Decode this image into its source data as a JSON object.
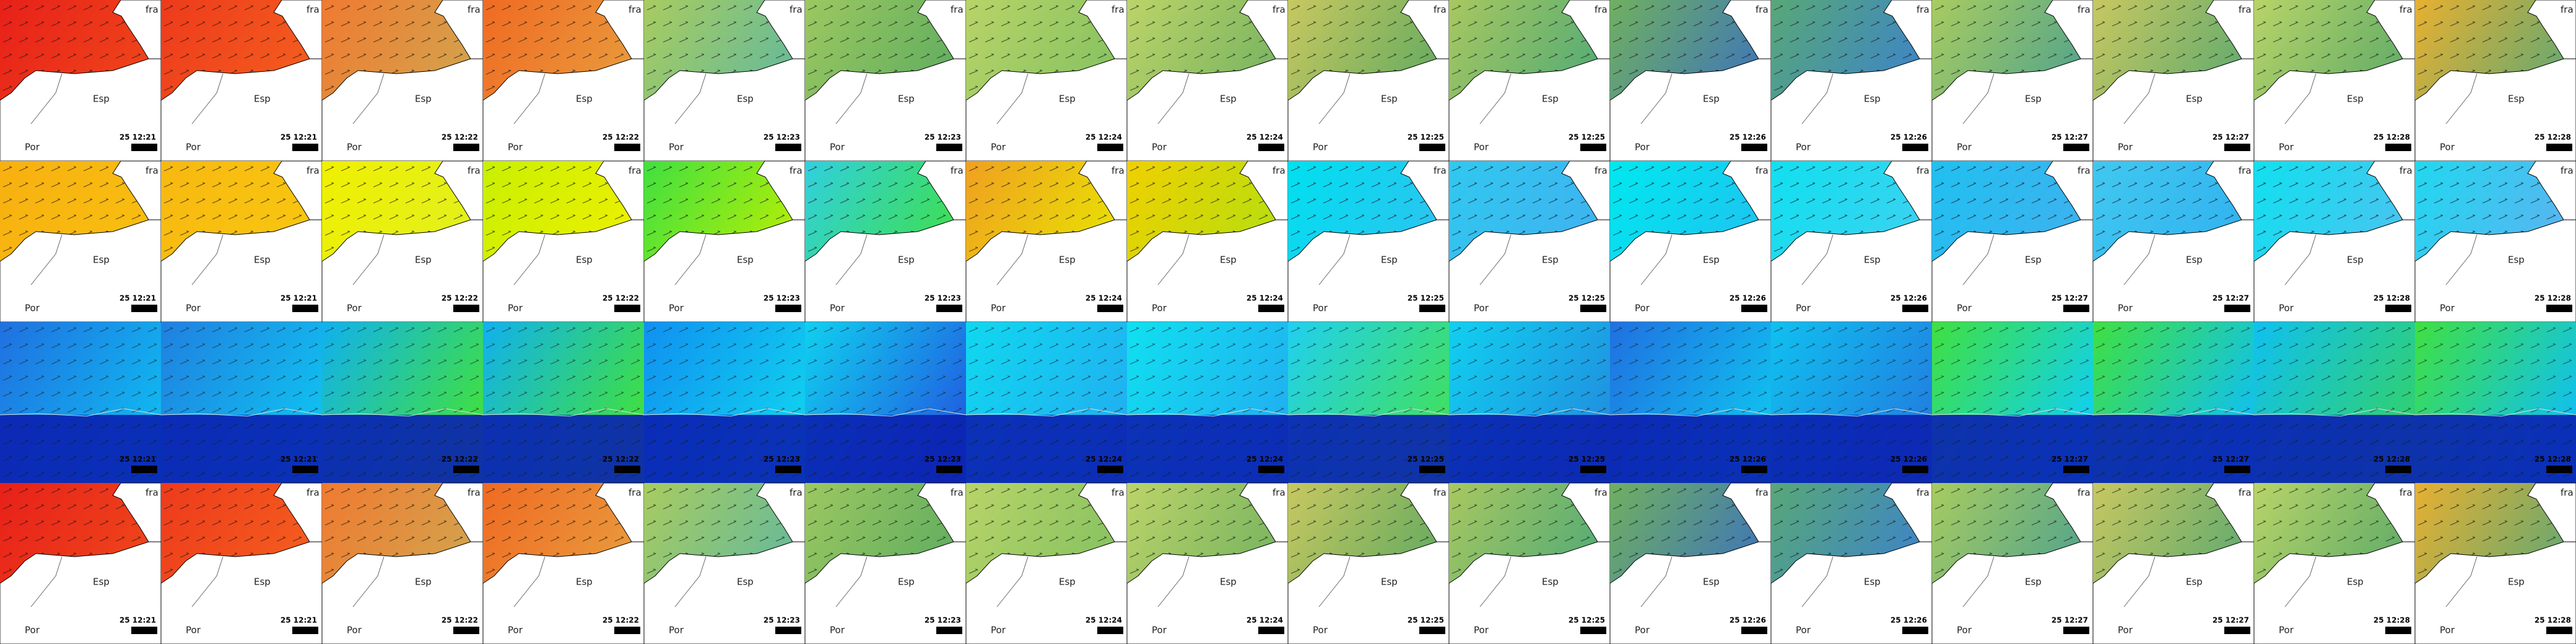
{
  "labels": {
    "france": "fra",
    "spain": "Esp",
    "portugal": "Por"
  },
  "times": [
    "25 12:21",
    "25 12:21",
    "25 12:22",
    "25 12:22",
    "25 12:23",
    "25 12:23",
    "25 12:24",
    "25 12:24",
    "25 12:25",
    "25 12:25",
    "25 12:26",
    "25 12:26",
    "25 12:27",
    "25 12:27",
    "25 12:28",
    "25 12:28"
  ]
}
